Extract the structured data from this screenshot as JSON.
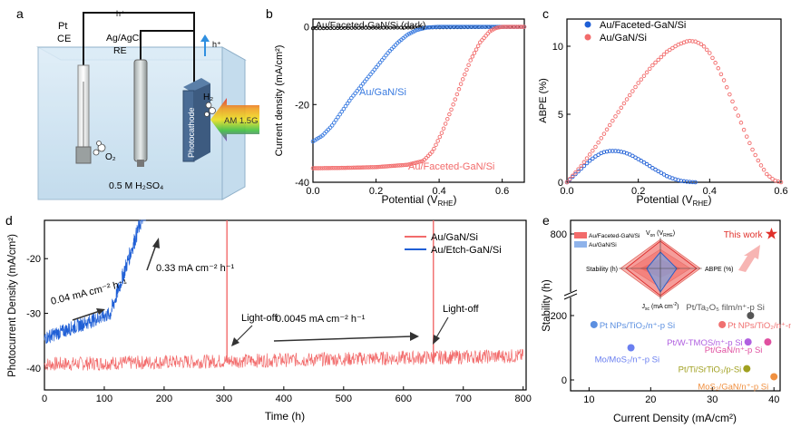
{
  "panels": {
    "a": "a",
    "b": "b",
    "c": "c",
    "d": "d",
    "e": "e"
  },
  "colors": {
    "red": "#f26b6b",
    "blue": "#1f5fd6",
    "blue_light": "#3a7be0",
    "black": "#111111",
    "tank": "#cfe4f2",
    "tank_edge": "#7fa6c6",
    "arrow_blue": "#2f8fe0"
  },
  "setup": {
    "pt_label": "Pt",
    "ce_label": "CE",
    "ref_label": "Ag/AgCl",
    "re_label": "RE",
    "hplus_top": "h⁺",
    "hplus_right": "h⁺",
    "photocathode_label": "Photocathode",
    "h2_label": "H₂",
    "o2_label": "O₂",
    "am_label": "AM 1.5G",
    "electrolyte_label": "0.5 M H₂SO₄"
  },
  "chart_data": [
    {
      "panel": "b",
      "type": "line",
      "xlabel": "Potential (V_RHE)",
      "xlabel_main": "Potential (V",
      "xlabel_sub": "RHE",
      "xlabel_close": ")",
      "ylabel": "Current density (mA/cm²)",
      "xlim": [
        0.0,
        0.67
      ],
      "ylim": [
        -40,
        2
      ],
      "xticks": [
        "0.0",
        "0.2",
        "0.4",
        "0.6"
      ],
      "yticks": [
        "0",
        "-20",
        "-40"
      ],
      "series": [
        {
          "name": "Au/Faceted-GaN/Si (dark)",
          "color": "#111111",
          "x": [
            0.0,
            0.1,
            0.2,
            0.3,
            0.4,
            0.5,
            0.6,
            0.67
          ],
          "y": [
            -0.4,
            -0.3,
            -0.25,
            -0.2,
            -0.15,
            -0.1,
            -0.05,
            0.0
          ]
        },
        {
          "name": "Au/GaN/Si",
          "color": "#3a7be0",
          "x": [
            0.0,
            0.03,
            0.06,
            0.09,
            0.12,
            0.15,
            0.18,
            0.21,
            0.24,
            0.27,
            0.3,
            0.33,
            0.36,
            0.4,
            0.5,
            0.6,
            0.67
          ],
          "y": [
            -29.5,
            -28.0,
            -25.5,
            -22.0,
            -18.5,
            -15.5,
            -12.5,
            -9.5,
            -6.5,
            -4.0,
            -2.0,
            -0.8,
            -0.2,
            0.0,
            0.0,
            0.0,
            0.0
          ]
        },
        {
          "name": "Au/Faceted-GaN/Si",
          "color": "#f26b6b",
          "x": [
            0.0,
            0.1,
            0.2,
            0.3,
            0.35,
            0.38,
            0.41,
            0.44,
            0.47,
            0.5,
            0.53,
            0.56,
            0.58,
            0.6,
            0.67
          ],
          "y": [
            -36.4,
            -36.3,
            -36.1,
            -35.5,
            -34.5,
            -32.0,
            -27.0,
            -21.0,
            -14.5,
            -8.5,
            -4.0,
            -1.2,
            -0.3,
            0.0,
            0.0
          ]
        }
      ]
    },
    {
      "panel": "c",
      "type": "line",
      "xlabel": "Potential (V_RHE)",
      "xlabel_main": "Potential (V",
      "xlabel_sub": "RHE",
      "xlabel_close": ")",
      "ylabel": "ABPE (%)",
      "xlim": [
        0.0,
        0.6
      ],
      "ylim": [
        0,
        12
      ],
      "xticks": [
        "0.0",
        "0.2",
        "0.4",
        "0.6"
      ],
      "yticks": [
        "0",
        "5",
        "10"
      ],
      "series": [
        {
          "name": "Au/Faceted-GaN/Si",
          "color": "#1f5fd6",
          "x": [
            0.0,
            0.02,
            0.04,
            0.06,
            0.08,
            0.1,
            0.12,
            0.14,
            0.16,
            0.18,
            0.2,
            0.22,
            0.24,
            0.26,
            0.28,
            0.3,
            0.32,
            0.34,
            0.36
          ],
          "y": [
            0.0,
            0.5,
            1.0,
            1.5,
            1.9,
            2.2,
            2.3,
            2.3,
            2.2,
            2.0,
            1.7,
            1.4,
            1.05,
            0.75,
            0.45,
            0.25,
            0.1,
            0.03,
            0.0
          ]
        },
        {
          "name": "Au/GaN/Si",
          "color": "#f26b6b",
          "x": [
            0.0,
            0.04,
            0.08,
            0.12,
            0.16,
            0.2,
            0.24,
            0.28,
            0.31,
            0.34,
            0.36,
            0.38,
            0.4,
            0.42,
            0.44,
            0.46,
            0.48,
            0.5,
            0.52,
            0.54,
            0.56,
            0.58,
            0.6
          ],
          "y": [
            0.0,
            1.2,
            2.6,
            4.2,
            5.8,
            7.3,
            8.6,
            9.6,
            10.1,
            10.4,
            10.35,
            10.1,
            9.5,
            8.6,
            7.5,
            6.2,
            4.9,
            3.6,
            2.4,
            1.4,
            0.6,
            0.15,
            0.0
          ]
        }
      ]
    },
    {
      "panel": "d",
      "type": "line",
      "xlabel": "Time (h)",
      "ylabel": "Photocurrent Density (mA/cm²)",
      "xlim": [
        0,
        805
      ],
      "ylim": [
        -44,
        -13
      ],
      "xticks": [
        "0",
        "100",
        "200",
        "300",
        "400",
        "500",
        "600",
        "700",
        "800"
      ],
      "yticks": [
        "-20",
        "-30",
        "-40"
      ],
      "series": [
        {
          "name": "Au/GaN/Si",
          "color": "#f26b6b"
        },
        {
          "name": "Au/Etch-GaN/Si",
          "color": "#1f5fd6"
        }
      ],
      "annotations": {
        "rate1": "0.04 mA cm⁻² h⁻¹",
        "rate2": "0.33 mA cm⁻² h⁻¹",
        "rate3": "0.0045 mA cm⁻² h⁻¹",
        "lightoff1": "Light-off",
        "lightoff2": "Light-off"
      },
      "lightoff_times": [
        305,
        650
      ]
    },
    {
      "panel": "e",
      "type": "scatter",
      "xlabel": "Current Density (mA/cm²)",
      "ylabel": "Stability (h)",
      "xlim": [
        7,
        41
      ],
      "xticks": [
        "10",
        "20",
        "30",
        "40"
      ],
      "yticks": [
        "0",
        "200",
        "800"
      ],
      "this_work_label": "This work",
      "points": [
        {
          "label": "This work",
          "x": 39.6,
          "y": 800,
          "color": "#e0302a"
        },
        {
          "label": "Pt/Ta₂O₅ film/n⁺-p Si",
          "x": 36.2,
          "y": 200,
          "color": "#555555"
        },
        {
          "label": "Pt NPs/TiO₂/n⁺-p Si",
          "x": 10.8,
          "y": 172,
          "color": "#5b8fe0"
        },
        {
          "label": "Pt NPs/TiO₂/n⁺-n-p⁺ Si",
          "x": 31.6,
          "y": 172,
          "color": "#f07070"
        },
        {
          "label": "Pt/W-TMOS/n⁺-p Si",
          "x": 35.8,
          "y": 118,
          "color": "#b060e0"
        },
        {
          "label": "Pt/GaN/n⁺-p Si",
          "x": 39.0,
          "y": 118,
          "color": "#e050a0"
        },
        {
          "label": "Mo/MoS₂/n⁺-p Si",
          "x": 16.8,
          "y": 100,
          "color": "#6a7ff0"
        },
        {
          "label": "Pt/Ti/SrTiO₃/p-Si",
          "x": 35.6,
          "y": 35,
          "color": "#a0a020"
        },
        {
          "label": "MoS₂/GaN/n⁺-p Si",
          "x": 40.0,
          "y": 10,
          "color": "#f09040"
        }
      ],
      "radar": {
        "legend": [
          "Au/Faceted-GaN/Si",
          "Au/GaN/Si"
        ],
        "axes": [
          "V_on (V_RHE)",
          "ABPE (%)",
          "J_sc (mA cm⁻²)",
          "Stability (h)"
        ],
        "axis_top": "V",
        "axis_top_sub": "on",
        "axis_top_rest": " (V",
        "axis_top_sub2": "RHE",
        "axis_top_close": ")",
        "axis_right": "ABPE (%)",
        "axis_bottom": "J",
        "axis_bottom_sub": "sc",
        "axis_bottom_rest": " (mA cm",
        "axis_bottom_sup": "-2",
        "axis_bottom_close": ")",
        "axis_left": "Stability (h)"
      }
    }
  ]
}
